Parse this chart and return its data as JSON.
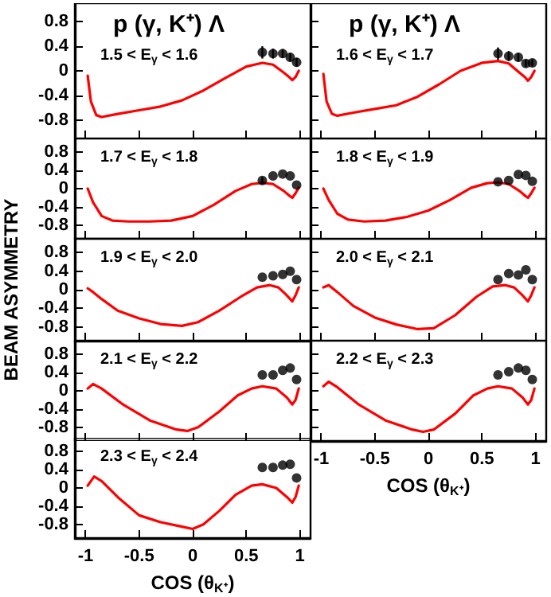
{
  "chart_data": [
    {
      "type": "line",
      "title": "p (γ, K⁺) Λ",
      "annotations": [
        "1.5 < E$_{γ}$ < 1.6"
      ],
      "xlim": [
        -1.1,
        1.1
      ],
      "ylim": [
        -1.1,
        1.1
      ],
      "xticks": [
        -1,
        -0.5,
        0,
        0.5,
        1
      ],
      "yticks": [
        -0.8,
        -0.4,
        0,
        0.4,
        0.8
      ],
      "tick_labels": "y",
      "series": [
        {
          "type": "line",
          "color": "#ff0000",
          "marker": "none",
          "line_style": "solid",
          "x": [
            -0.98,
            -0.95,
            -0.9,
            -0.85,
            -0.7,
            -0.5,
            -0.3,
            -0.1,
            0.1,
            0.3,
            0.5,
            0.65,
            0.75,
            0.85,
            0.9,
            0.93,
            0.96,
            0.99
          ],
          "values": [
            -0.08,
            -0.5,
            -0.72,
            -0.75,
            -0.7,
            -0.64,
            -0.58,
            -0.48,
            -0.32,
            -0.12,
            0.07,
            0.13,
            0.1,
            -0.03,
            -0.1,
            -0.15,
            -0.1,
            0.0
          ]
        },
        {
          "type": "scatter",
          "color": "#000000",
          "marker": "circle",
          "x": [
            0.65,
            0.75,
            0.84,
            0.91,
            0.97
          ],
          "values": [
            0.3,
            0.28,
            0.28,
            0.22,
            0.14
          ],
          "errors": [
            0.1,
            0.08,
            0.07,
            0.07,
            0.07
          ]
        }
      ]
    },
    {
      "type": "line",
      "title": "p (γ, K⁺) Λ",
      "annotations": [
        "1.6 < E$_{γ}$ < 1.7"
      ],
      "xlim": [
        -1.1,
        1.1
      ],
      "ylim": [
        -1.1,
        1.1
      ],
      "xticks": [
        -1,
        -0.5,
        0,
        0.5,
        1
      ],
      "yticks": [
        -0.8,
        -0.4,
        0,
        0.4,
        0.8
      ],
      "tick_labels": false,
      "series": [
        {
          "type": "line",
          "color": "#ff0000",
          "marker": "none",
          "line_style": "solid",
          "x": [
            -0.98,
            -0.95,
            -0.9,
            -0.85,
            -0.7,
            -0.5,
            -0.3,
            -0.1,
            0.1,
            0.3,
            0.5,
            0.65,
            0.75,
            0.85,
            0.9,
            0.93,
            0.96,
            0.99
          ],
          "values": [
            -0.05,
            -0.5,
            -0.7,
            -0.73,
            -0.68,
            -0.62,
            -0.56,
            -0.42,
            -0.22,
            0.0,
            0.13,
            0.16,
            0.12,
            -0.03,
            -0.1,
            -0.16,
            -0.1,
            0.0
          ]
        },
        {
          "type": "scatter",
          "color": "#000000",
          "marker": "circle",
          "x": [
            0.65,
            0.75,
            0.84,
            0.91,
            0.97
          ],
          "values": [
            0.28,
            0.24,
            0.22,
            0.12,
            0.13
          ],
          "errors": [
            0.1,
            0.08,
            0.07,
            0.06,
            0.06
          ]
        }
      ]
    },
    {
      "type": "line",
      "annotations": [
        "1.7 < E$_{γ}$ < 1.8"
      ],
      "xlim": [
        -1.1,
        1.1
      ],
      "ylim": [
        -1.1,
        1.1
      ],
      "xticks": [
        -1,
        -0.5,
        0,
        0.5,
        1
      ],
      "yticks": [
        -0.8,
        -0.4,
        0,
        0.4,
        0.8
      ],
      "tick_labels": "y",
      "series": [
        {
          "type": "line",
          "color": "#ff0000",
          "marker": "none",
          "line_style": "solid",
          "x": [
            -0.98,
            -0.93,
            -0.85,
            -0.75,
            -0.6,
            -0.4,
            -0.2,
            0,
            0.2,
            0.4,
            0.55,
            0.65,
            0.75,
            0.85,
            0.9,
            0.93,
            0.96,
            0.99
          ],
          "values": [
            0.0,
            -0.3,
            -0.6,
            -0.7,
            -0.72,
            -0.72,
            -0.7,
            -0.6,
            -0.35,
            -0.05,
            0.1,
            0.13,
            0.1,
            -0.05,
            -0.15,
            -0.2,
            -0.1,
            0.02
          ]
        },
        {
          "type": "scatter",
          "color": "#000000",
          "marker": "circle",
          "x": [
            0.65,
            0.75,
            0.84,
            0.91,
            0.97
          ],
          "values": [
            0.18,
            0.28,
            0.32,
            0.28,
            0.08
          ],
          "errors": [
            0.07,
            null,
            null,
            null,
            null
          ]
        }
      ]
    },
    {
      "type": "line",
      "annotations": [
        "1.8 < E$_{γ}$ < 1.9"
      ],
      "xlim": [
        -1.1,
        1.1
      ],
      "ylim": [
        -1.1,
        1.1
      ],
      "xticks": [
        -1,
        -0.5,
        0,
        0.5,
        1
      ],
      "yticks": [
        -0.8,
        -0.4,
        0,
        0.4,
        0.8
      ],
      "tick_labels": false,
      "series": [
        {
          "type": "line",
          "color": "#ff0000",
          "marker": "none",
          "line_style": "solid",
          "x": [
            -0.98,
            -0.93,
            -0.85,
            -0.75,
            -0.6,
            -0.4,
            -0.2,
            0,
            0.2,
            0.4,
            0.55,
            0.65,
            0.75,
            0.85,
            0.9,
            0.93,
            0.96,
            0.99
          ],
          "values": [
            0.0,
            -0.25,
            -0.55,
            -0.68,
            -0.72,
            -0.7,
            -0.62,
            -0.48,
            -0.25,
            0.02,
            0.12,
            0.14,
            0.1,
            -0.05,
            -0.15,
            -0.2,
            -0.1,
            0.02
          ]
        },
        {
          "type": "scatter",
          "color": "#000000",
          "marker": "circle",
          "x": [
            0.65,
            0.75,
            0.84,
            0.91,
            0.97
          ],
          "values": [
            0.15,
            0.18,
            0.31,
            0.29,
            0.16
          ]
        }
      ]
    },
    {
      "type": "line",
      "ylabel": "BEAM ASYMMETRY",
      "annotations": [
        "1.9 < E$_{γ}$ < 2.0"
      ],
      "xlim": [
        -1.1,
        1.1
      ],
      "ylim": [
        -1.1,
        1.1
      ],
      "xticks": [
        -1,
        -0.5,
        0,
        0.5,
        1
      ],
      "yticks": [
        -0.8,
        -0.4,
        0,
        0.4,
        0.8
      ],
      "tick_labels": "y",
      "series": [
        {
          "type": "line",
          "color": "#ff0000",
          "marker": "none",
          "line_style": "solid",
          "x": [
            -0.98,
            -0.93,
            -0.85,
            -0.7,
            -0.5,
            -0.3,
            -0.1,
            0.05,
            0.25,
            0.45,
            0.6,
            0.72,
            0.8,
            0.87,
            0.93,
            0.96,
            0.99
          ],
          "values": [
            0.03,
            -0.05,
            -0.2,
            -0.45,
            -0.62,
            -0.74,
            -0.78,
            -0.7,
            -0.45,
            -0.15,
            0.05,
            0.1,
            0.05,
            -0.1,
            -0.25,
            -0.12,
            0.05
          ]
        },
        {
          "type": "scatter",
          "color": "#000000",
          "marker": "circle",
          "x": [
            0.65,
            0.75,
            0.84,
            0.91,
            0.97
          ],
          "values": [
            0.27,
            0.3,
            0.33,
            0.4,
            0.22
          ]
        }
      ]
    },
    {
      "type": "line",
      "annotations": [
        "2.0 < E$_{γ}$ < 2.1"
      ],
      "xlim": [
        -1.1,
        1.1
      ],
      "ylim": [
        -1.1,
        1.1
      ],
      "xticks": [
        -1,
        -0.5,
        0,
        0.5,
        1
      ],
      "yticks": [
        -0.8,
        -0.4,
        0,
        0.4,
        0.8
      ],
      "tick_labels": false,
      "series": [
        {
          "type": "line",
          "color": "#ff0000",
          "marker": "none",
          "line_style": "solid",
          "x": [
            -0.98,
            -0.93,
            -0.85,
            -0.7,
            -0.5,
            -0.3,
            -0.1,
            0.05,
            0.25,
            0.45,
            0.6,
            0.72,
            0.8,
            0.87,
            0.93,
            0.96,
            0.99
          ],
          "values": [
            0.05,
            0.1,
            -0.05,
            -0.35,
            -0.6,
            -0.75,
            -0.85,
            -0.83,
            -0.55,
            -0.15,
            0.07,
            0.1,
            0.05,
            -0.1,
            -0.25,
            -0.12,
            0.05
          ]
        },
        {
          "type": "scatter",
          "color": "#000000",
          "marker": "circle",
          "x": [
            0.65,
            0.75,
            0.84,
            0.91,
            0.97
          ],
          "values": [
            0.22,
            0.35,
            0.32,
            0.43,
            0.22
          ]
        }
      ]
    },
    {
      "type": "line",
      "annotations": [
        "2.1 < E$_{γ}$ < 2.2"
      ],
      "xlim": [
        -1.1,
        1.1
      ],
      "ylim": [
        -1.1,
        1.1
      ],
      "xticks": [
        -1,
        -0.5,
        0,
        0.5,
        1
      ],
      "yticks": [
        -0.8,
        -0.4,
        0,
        0.4,
        0.8
      ],
      "tick_labels": "y",
      "series": [
        {
          "type": "line",
          "color": "#ff0000",
          "marker": "none",
          "line_style": "solid",
          "x": [
            -0.98,
            -0.93,
            -0.85,
            -0.65,
            -0.4,
            -0.15,
            -0.05,
            0.05,
            0.25,
            0.42,
            0.55,
            0.65,
            0.78,
            0.88,
            0.93,
            0.96,
            0.99
          ],
          "values": [
            0.05,
            0.15,
            0.05,
            -0.3,
            -0.65,
            -0.85,
            -0.88,
            -0.8,
            -0.45,
            -0.1,
            0.05,
            0.1,
            0.05,
            -0.15,
            -0.3,
            -0.2,
            0.05
          ]
        },
        {
          "type": "scatter",
          "color": "#000000",
          "marker": "circle",
          "x": [
            0.65,
            0.75,
            0.84,
            0.91,
            0.97
          ],
          "values": [
            0.35,
            0.35,
            0.45,
            0.5,
            0.25
          ]
        }
      ]
    },
    {
      "type": "line",
      "xlabel": "COS (θ$_{K⁺}$)",
      "annotations": [
        "2.2 < E$_{γ}$ < 2.3"
      ],
      "xlim": [
        -1.1,
        1.1
      ],
      "ylim": [
        -1.1,
        1.1
      ],
      "xticks": [
        -1,
        -0.5,
        0,
        0.5,
        1
      ],
      "yticks": [
        -0.8,
        -0.4,
        0,
        0.4,
        0.8
      ],
      "tick_labels": "x",
      "series": [
        {
          "type": "line",
          "color": "#ff0000",
          "marker": "none",
          "line_style": "solid",
          "x": [
            -0.98,
            -0.93,
            -0.85,
            -0.65,
            -0.4,
            -0.15,
            -0.05,
            0.05,
            0.25,
            0.42,
            0.55,
            0.65,
            0.78,
            0.88,
            0.93,
            0.96,
            0.99
          ],
          "values": [
            0.1,
            0.2,
            0.08,
            -0.3,
            -0.65,
            -0.85,
            -0.9,
            -0.85,
            -0.5,
            -0.1,
            0.05,
            0.1,
            0.05,
            -0.15,
            -0.3,
            -0.2,
            0.05
          ]
        },
        {
          "type": "scatter",
          "color": "#000000",
          "marker": "circle",
          "x": [
            0.65,
            0.75,
            0.84,
            0.91,
            0.97
          ],
          "values": [
            0.35,
            0.42,
            0.5,
            0.45,
            0.25
          ]
        }
      ]
    },
    {
      "type": "line",
      "xlabel": "COS (θ$_{K⁺}$)",
      "annotations": [
        "2.3 < E$_{γ}$ < 2.4"
      ],
      "xlim": [
        -1.1,
        1.1
      ],
      "ylim": [
        -1.1,
        1.1
      ],
      "xticks": [
        -1,
        -0.5,
        0,
        0.5,
        1
      ],
      "yticks": [
        -0.8,
        -0.4,
        0,
        0.4,
        0.8
      ],
      "series": [
        {
          "type": "line",
          "color": "#ff0000",
          "marker": "none",
          "line_style": "solid",
          "x": [
            -0.98,
            -0.92,
            -0.85,
            -0.7,
            -0.5,
            -0.3,
            -0.1,
            0,
            0.1,
            0.25,
            0.4,
            0.55,
            0.65,
            0.78,
            0.88,
            0.93,
            0.96,
            0.99
          ],
          "values": [
            0.05,
            0.25,
            0.15,
            -0.2,
            -0.6,
            -0.75,
            -0.85,
            -0.9,
            -0.8,
            -0.5,
            -0.15,
            0.05,
            0.08,
            0.0,
            -0.2,
            -0.32,
            -0.2,
            0.05
          ]
        },
        {
          "type": "scatter",
          "color": "#000000",
          "marker": "circle",
          "x": [
            0.65,
            0.75,
            0.84,
            0.91,
            0.97
          ],
          "values": [
            0.45,
            0.45,
            0.5,
            0.52,
            0.22
          ]
        }
      ]
    }
  ]
}
